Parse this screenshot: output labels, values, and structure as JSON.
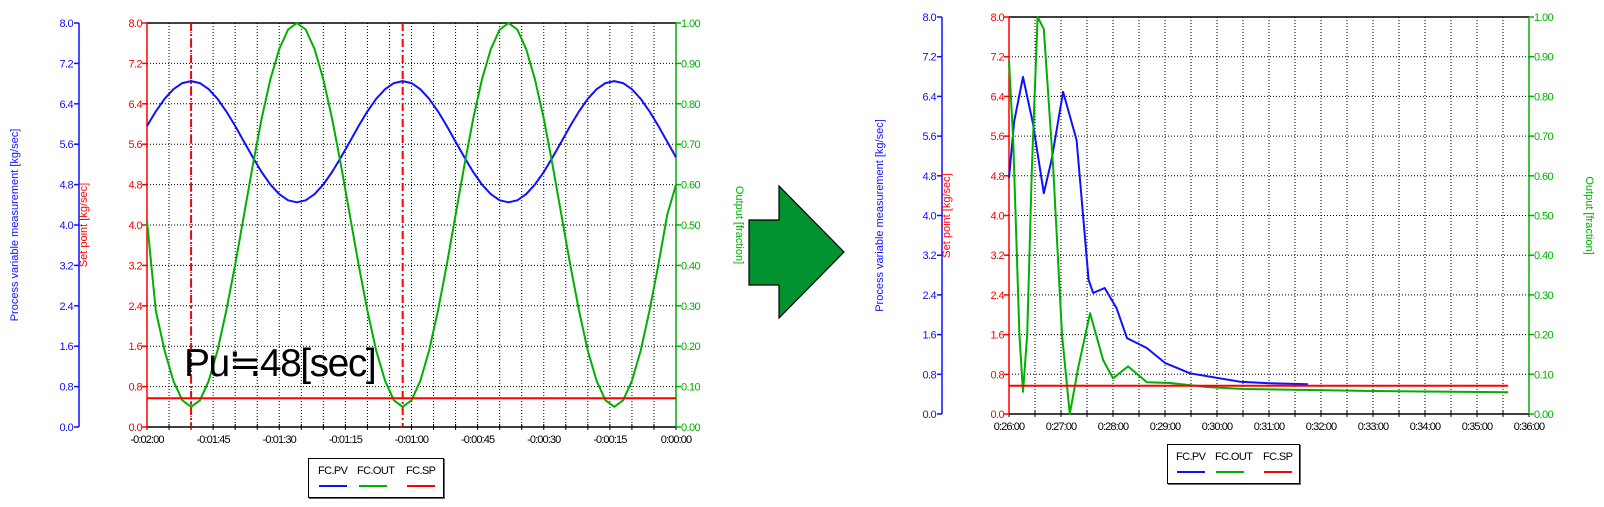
{
  "colors": {
    "pv": "#1010ff",
    "out": "#00b000",
    "sp": "#ff0000",
    "arrow": "#009330",
    "text": "#000000"
  },
  "legend": {
    "items": [
      "FC.PV",
      "FC.OUT",
      "FC.SP"
    ]
  },
  "chart_data": [
    {
      "type": "line",
      "title": "",
      "x_unit": "seconds",
      "x_range": [
        -120,
        0
      ],
      "x_grid_step": 5,
      "x_ticks": [
        {
          "value": -120,
          "label": "-0:02:00"
        },
        {
          "value": -105,
          "label": "-0:01:45"
        },
        {
          "value": -90,
          "label": "-0:01:30"
        },
        {
          "value": -75,
          "label": "-0:01:15"
        },
        {
          "value": -60,
          "label": "-0:01:00"
        },
        {
          "value": -45,
          "label": "-0:00:45"
        },
        {
          "value": -30,
          "label": "-0:00:30"
        },
        {
          "value": -15,
          "label": "-0:00:15"
        },
        {
          "value": 0,
          "label": "0:00:00"
        }
      ],
      "pv_axis": {
        "label": "Process variable measurement  [kg/sec]",
        "range": [
          0,
          8
        ],
        "tick_labels": [
          "0.0",
          "0.8",
          "1.6",
          "2.4",
          "3.2",
          "4.0",
          "4.8",
          "5.6",
          "6.4",
          "7.2",
          "8.0"
        ]
      },
      "sp_axis": {
        "label": "Set point  [kg/sec]",
        "range": [
          0,
          8
        ],
        "tick_labels": [
          "0.0",
          "0.8",
          "1.6",
          "2.4",
          "3.2",
          "4.0",
          "4.8",
          "5.6",
          "6.4",
          "7.2",
          "8.0"
        ]
      },
      "out_axis": {
        "label": "Output  [fraction]",
        "range": [
          0,
          1
        ],
        "tick_labels": [
          "0.00",
          "0.10",
          "0.20",
          "0.30",
          "0.40",
          "0.50",
          "0.60",
          "0.70",
          "0.80",
          "0.90",
          "1.00"
        ]
      },
      "grid": true,
      "legend_position": "bottom-center",
      "markers": [
        -110,
        -62
      ],
      "annotation": "Pu≒48[sec]",
      "series": [
        {
          "name": "FC.PV",
          "axis": "pv",
          "x_start": -120,
          "x_step": 2,
          "y": [
            5.96,
            6.25,
            6.5,
            6.69,
            6.81,
            6.85,
            6.81,
            6.69,
            6.5,
            6.25,
            5.96,
            5.65,
            5.34,
            5.05,
            4.8,
            4.61,
            4.49,
            4.45,
            4.49,
            4.61,
            4.8,
            5.05,
            5.34,
            5.65,
            5.96,
            6.25,
            6.5,
            6.69,
            6.81,
            6.85,
            6.81,
            6.69,
            6.5,
            6.25,
            5.96,
            5.65,
            5.34,
            5.05,
            4.8,
            4.61,
            4.49,
            4.45,
            4.49,
            4.61,
            4.8,
            5.05,
            5.34,
            5.65,
            5.96,
            6.25,
            6.5,
            6.69,
            6.81,
            6.85,
            6.81,
            6.69,
            6.5,
            6.25,
            5.96,
            5.65,
            5.34
          ]
        },
        {
          "name": "FC.OUT",
          "axis": "out",
          "x_start": -120,
          "x_step": 2,
          "y": [
            0.51,
            0.288,
            0.189,
            0.114,
            0.066,
            0.05,
            0.066,
            0.114,
            0.189,
            0.288,
            0.402,
            0.525,
            0.648,
            0.763,
            0.861,
            0.936,
            0.984,
            1.0,
            0.984,
            0.936,
            0.861,
            0.763,
            0.648,
            0.525,
            0.402,
            0.288,
            0.189,
            0.114,
            0.066,
            0.05,
            0.066,
            0.114,
            0.189,
            0.288,
            0.402,
            0.525,
            0.648,
            0.763,
            0.861,
            0.936,
            0.984,
            1.0,
            0.984,
            0.936,
            0.861,
            0.763,
            0.648,
            0.525,
            0.402,
            0.288,
            0.189,
            0.114,
            0.066,
            0.05,
            0.066,
            0.114,
            0.189,
            0.288,
            0.402,
            0.525,
            0.6
          ]
        },
        {
          "name": "FC.SP",
          "axis": "sp",
          "x": [
            -120,
            0
          ],
          "y": [
            0.57,
            0.57
          ]
        }
      ]
    },
    {
      "type": "line",
      "title": "",
      "x_unit": "minutes",
      "x_range": [
        0,
        10
      ],
      "x_grid_step": 0.5,
      "x_ticks": [
        {
          "value": 0,
          "label": "0:26:00"
        },
        {
          "value": 1,
          "label": "0:27:00"
        },
        {
          "value": 2,
          "label": "0:28:00"
        },
        {
          "value": 3,
          "label": "0:29:00"
        },
        {
          "value": 4,
          "label": "0:30:00"
        },
        {
          "value": 5,
          "label": "0:31:00"
        },
        {
          "value": 6,
          "label": "0:32:00"
        },
        {
          "value": 7,
          "label": "0:33:00"
        },
        {
          "value": 8,
          "label": "0:34:00"
        },
        {
          "value": 9,
          "label": "0:35:00"
        },
        {
          "value": 10,
          "label": "0:36:00"
        }
      ],
      "pv_axis": {
        "label": "Process variable measurement  [kg/sec]",
        "range": [
          0,
          8
        ],
        "tick_labels": [
          "0.0",
          "0.8",
          "1.6",
          "2.4",
          "3.2",
          "4.0",
          "4.8",
          "5.6",
          "6.4",
          "7.2",
          "8.0"
        ]
      },
      "sp_axis": {
        "label": "Set point  [kg/sec]",
        "range": [
          0,
          8
        ],
        "tick_labels": [
          "0.0",
          "0.8",
          "1.6",
          "2.4",
          "3.2",
          "4.0",
          "4.8",
          "5.6",
          "6.4",
          "7.2",
          "8.0"
        ]
      },
      "out_axis": {
        "label": "Output  [fraction]",
        "range": [
          0,
          1
        ],
        "tick_labels": [
          "0.00",
          "0.10",
          "0.20",
          "0.30",
          "0.40",
          "0.50",
          "0.60",
          "0.70",
          "0.80",
          "0.90",
          "1.00"
        ]
      },
      "grid": true,
      "legend_position": "bottom-center",
      "markers": [],
      "series": [
        {
          "name": "FC.PV",
          "axis": "pv",
          "x": [
            0,
            0.1,
            0.27,
            0.46,
            0.67,
            0.82,
            1.04,
            1.3,
            1.53,
            1.62,
            1.84,
            2.07,
            2.27,
            2.65,
            3.0,
            3.48,
            4.44,
            5.0,
            5.75
          ],
          "y": [
            4.76,
            5.9,
            6.79,
            5.86,
            4.45,
            5.12,
            6.49,
            5.52,
            2.7,
            2.44,
            2.54,
            2.13,
            1.53,
            1.33,
            1.03,
            0.82,
            0.65,
            0.62,
            0.6
          ]
        },
        {
          "name": "FC.OUT",
          "axis": "out",
          "x": [
            0,
            0.08,
            0.2,
            0.27,
            0.35,
            0.44,
            0.55,
            0.67,
            0.85,
            1.02,
            1.17,
            1.33,
            1.56,
            1.81,
            2.0,
            2.29,
            2.65,
            3.1,
            3.8,
            4.5,
            7.0,
            9.6
          ],
          "y": [
            0.89,
            0.69,
            0.2,
            0.056,
            0.2,
            0.62,
            1.0,
            0.97,
            0.62,
            0.2,
            0.0,
            0.117,
            0.254,
            0.136,
            0.09,
            0.12,
            0.08,
            0.078,
            0.068,
            0.063,
            0.058,
            0.055
          ]
        },
        {
          "name": "FC.SP",
          "axis": "sp",
          "x": [
            0,
            9.6
          ],
          "y": [
            0.57,
            0.57
          ]
        }
      ]
    }
  ]
}
